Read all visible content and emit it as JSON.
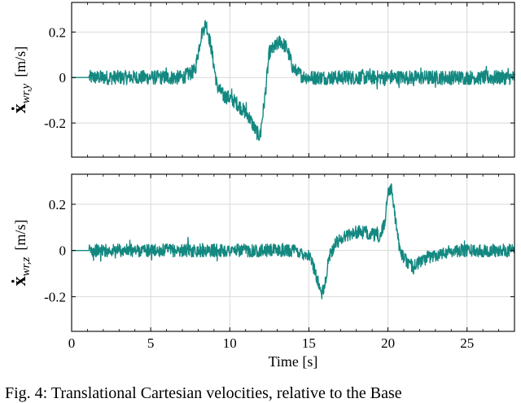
{
  "caption": "Fig. 4: Translational Cartesian velocities, relative to the Base",
  "chart_data": [
    {
      "type": "line",
      "panel": "top",
      "ylabel": {
        "symbol": "ẋ",
        "subscript": "wr,y",
        "unit": "[m/s]"
      },
      "xlabel": "",
      "xlim": [
        0,
        28
      ],
      "ylim": [
        -0.35,
        0.33
      ],
      "xticks": [
        0,
        5,
        10,
        15,
        20,
        25
      ],
      "xtick_labels": [
        "0",
        "5",
        "10",
        "15",
        "20",
        "25"
      ],
      "yticks": [
        -0.2,
        0,
        0.2
      ],
      "ytick_labels": [
        "-0.2",
        "0",
        "0.2"
      ],
      "grid": true,
      "color": "#138880",
      "flat_until": 1.1,
      "noise_amplitude": 0.045,
      "series": [
        {
          "x": [
            0,
            1.1,
            2,
            3,
            4,
            5,
            6,
            7,
            7.8,
            8.2,
            8.5,
            8.8,
            9.2,
            9.6,
            10,
            10.4,
            10.8,
            11.2,
            11.6,
            11.9,
            12.2,
            12.5,
            12.8,
            13.2,
            13.6,
            14,
            14.5,
            15,
            16,
            17,
            18,
            19,
            20,
            21,
            22,
            23,
            24,
            25,
            26,
            27,
            27.5,
            28
          ],
          "y": [
            0,
            0,
            0,
            0,
            0,
            0,
            0,
            0,
            0.03,
            0.19,
            0.24,
            0.14,
            -0.04,
            -0.08,
            -0.09,
            -0.11,
            -0.14,
            -0.17,
            -0.23,
            -0.26,
            -0.1,
            0.11,
            0.13,
            0.16,
            0.13,
            0.04,
            0.01,
            0,
            0,
            0,
            0,
            0,
            0,
            0,
            0,
            0,
            0,
            0,
            0,
            0,
            0,
            0
          ]
        }
      ]
    },
    {
      "type": "line",
      "panel": "bottom",
      "ylabel": {
        "symbol": "ẋ",
        "subscript": "wr,z",
        "unit": "[m/s]"
      },
      "xlabel": "Time [s]",
      "xlim": [
        0,
        28
      ],
      "ylim": [
        -0.35,
        0.33
      ],
      "xticks": [
        0,
        5,
        10,
        15,
        20,
        25
      ],
      "xtick_labels": [
        "0",
        "5",
        "10",
        "15",
        "20",
        "25"
      ],
      "yticks": [
        -0.2,
        0,
        0.2
      ],
      "ytick_labels": [
        "-0.2",
        "0",
        "0.2"
      ],
      "grid": true,
      "color": "#138880",
      "flat_until": 1.1,
      "noise_amplitude": 0.04,
      "series": [
        {
          "x": [
            0,
            1.1,
            2,
            4,
            6,
            8,
            10,
            12,
            14,
            15,
            15.4,
            15.8,
            16,
            16.3,
            16.7,
            17,
            17.5,
            18,
            18.5,
            19,
            19.5,
            19.8,
            20,
            20.2,
            20.4,
            20.6,
            20.9,
            21.2,
            21.6,
            22,
            22.5,
            23,
            24,
            25,
            26,
            27,
            28
          ],
          "y": [
            0,
            0,
            0,
            0,
            0,
            0,
            0,
            0,
            0,
            -0.02,
            -0.09,
            -0.19,
            -0.16,
            -0.02,
            0.03,
            0.05,
            0.07,
            0.08,
            0.08,
            0.07,
            0.06,
            0.12,
            0.26,
            0.27,
            0.18,
            0.06,
            -0.02,
            -0.05,
            -0.07,
            -0.05,
            -0.03,
            -0.02,
            0,
            0,
            0,
            0,
            0
          ]
        }
      ]
    }
  ]
}
